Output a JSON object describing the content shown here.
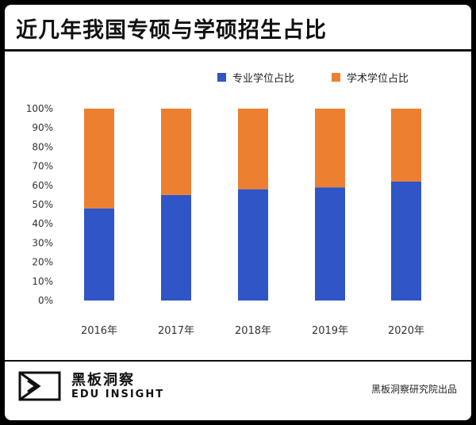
{
  "title": "近几年我国专硕与学硕招生占比",
  "footer": {
    "brand_cn": "黑板洞察",
    "brand_en": "EDU INSIGHT",
    "source": "黑板洞察研究院出品"
  },
  "colors": {
    "professional": "#2F55C7",
    "academic": "#EC8030",
    "axis_text": "#333333"
  },
  "chart_data": {
    "type": "bar",
    "stacked": true,
    "categories": [
      "2016年",
      "2017年",
      "2018年",
      "2019年",
      "2020年"
    ],
    "series": [
      {
        "name": "专业学位占比",
        "values": [
          48,
          55,
          58,
          59,
          62
        ]
      },
      {
        "name": "学术学位占比",
        "values": [
          52,
          45,
          42,
          41,
          38
        ]
      }
    ],
    "ylim": [
      0,
      100
    ],
    "yticks": [
      "0%",
      "10%",
      "20%",
      "30%",
      "40%",
      "50%",
      "60%",
      "70%",
      "80%",
      "90%",
      "100%"
    ],
    "legend_position": "top-right",
    "grid": false
  }
}
